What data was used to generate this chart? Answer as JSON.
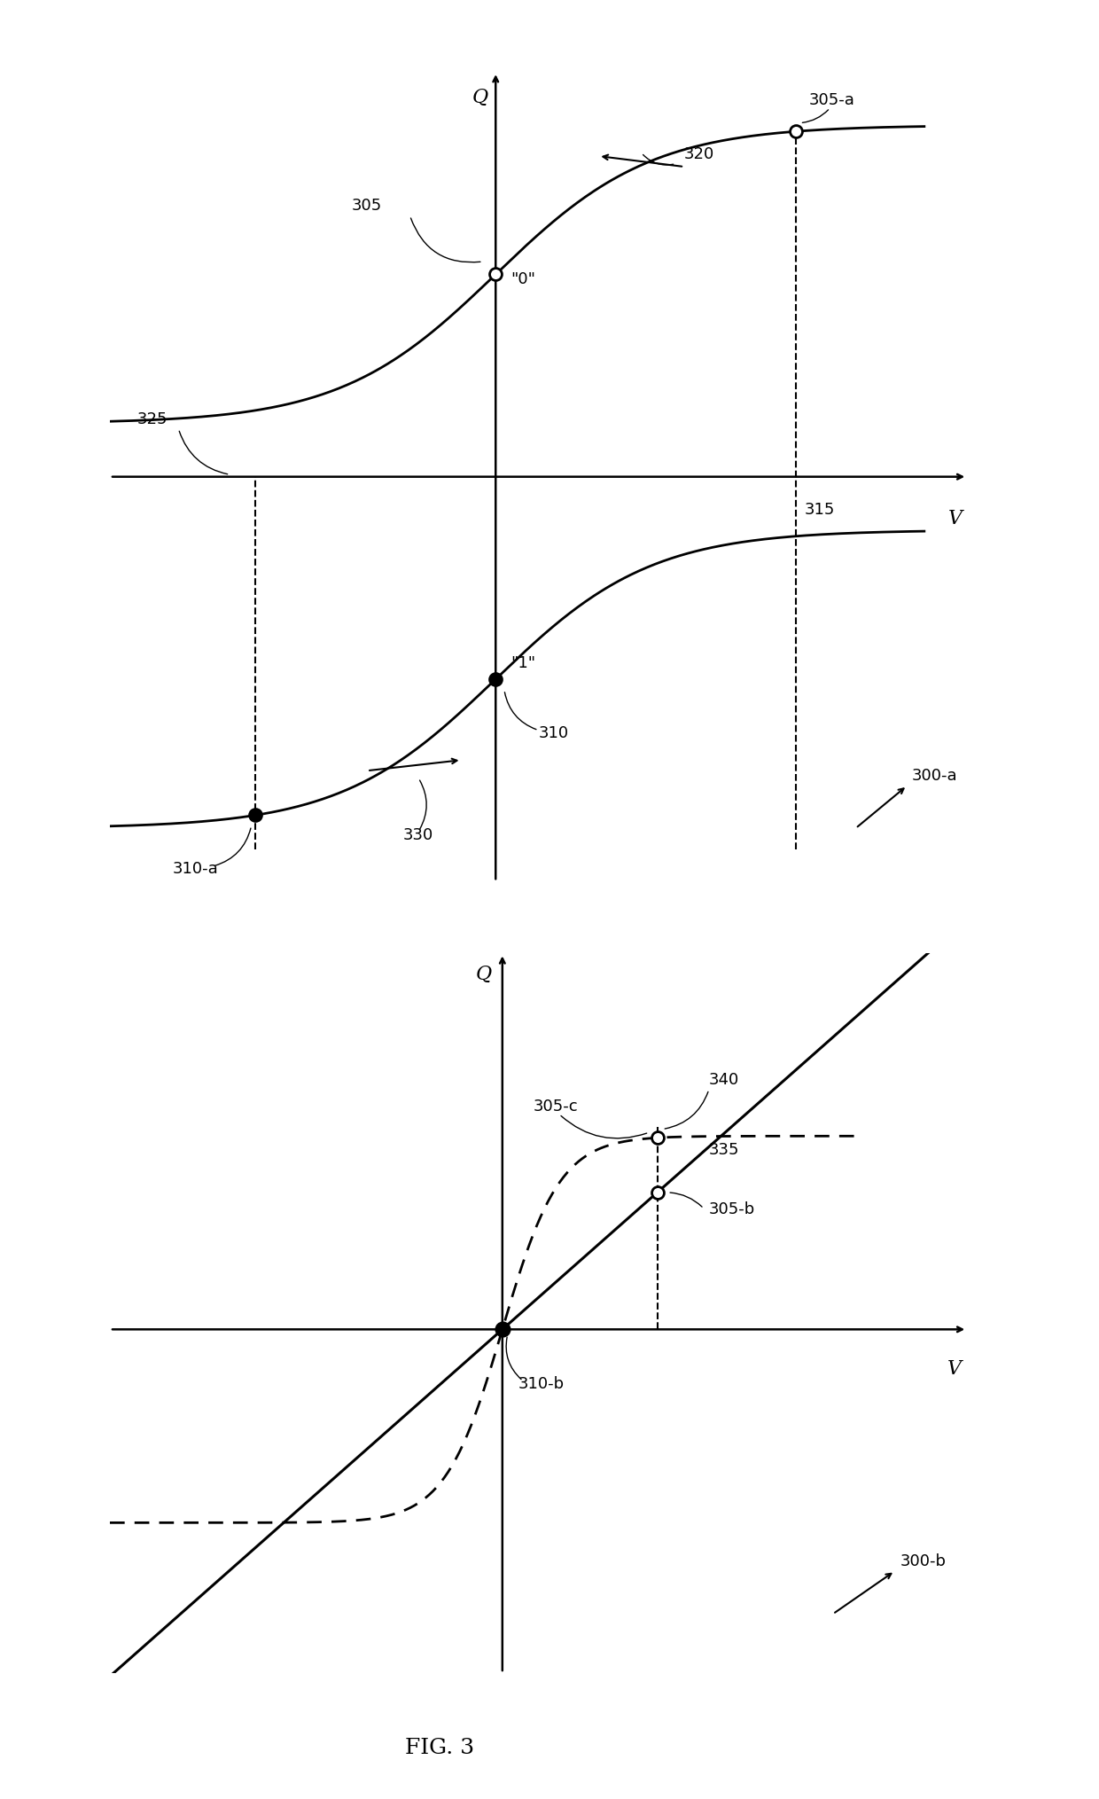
{
  "bg_color": "#ffffff",
  "fig_width": 12.4,
  "fig_height": 20.29,
  "top_panel": {
    "xlim": [
      -4.5,
      5.5
    ],
    "ylim": [
      -3.8,
      3.8
    ],
    "hysteresis": {
      "upper_x0": 0.0,
      "upper_k": 1.1,
      "upper_amp": 2.8,
      "upper_off": 0.5,
      "lower_x0": 0.0,
      "lower_k": 1.1,
      "lower_amp": 2.8,
      "lower_off": -3.3
    }
  },
  "bottom_panel": {
    "xlim": [
      -3.8,
      4.5
    ],
    "ylim": [
      -3.2,
      3.5
    ],
    "linear_slope": 0.85,
    "ferro_x0": 0.0,
    "ferro_k": 2.5,
    "ferro_amp": 2.8,
    "ferro_off": -1.4
  }
}
